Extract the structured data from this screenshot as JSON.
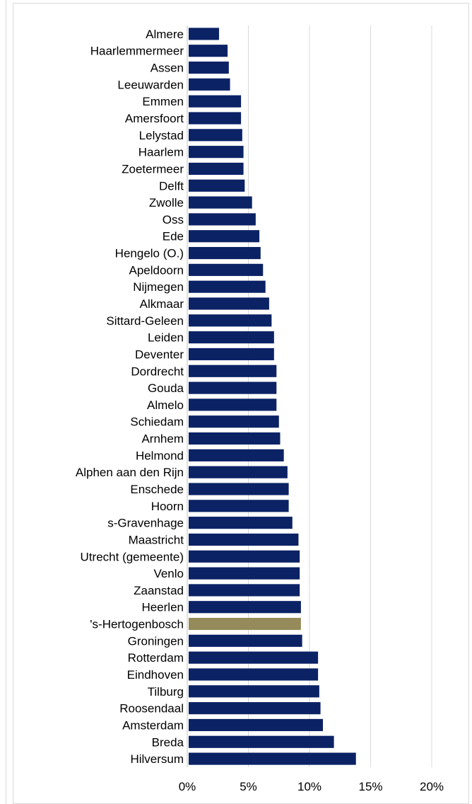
{
  "chart_data": {
    "type": "bar",
    "orientation": "horizontal",
    "categories": [
      "Almere",
      "Haarlemmermeer",
      "Assen",
      "Leeuwarden",
      "Emmen",
      "Amersfoort",
      "Lelystad",
      "Haarlem",
      "Zoetermeer",
      "Delft",
      "Zwolle",
      "Oss",
      "Ede",
      "Hengelo (O.)",
      "Apeldoorn",
      "Nijmegen",
      "Alkmaar",
      "Sittard-Geleen",
      "Leiden",
      "Deventer",
      "Dordrecht",
      "Gouda",
      "Almelo",
      "Schiedam",
      "Arnhem",
      "Helmond",
      "Alphen aan den Rijn",
      "Enschede",
      "Hoorn",
      "s-Gravenhage",
      "Maastricht",
      "Utrecht (gemeente)",
      "Venlo",
      "Zaanstad",
      "Heerlen",
      "'s-Hertogenbosch",
      "Groningen",
      "Rotterdam",
      "Eindhoven",
      "Tilburg",
      "Roosendaal",
      "Amsterdam",
      "Breda",
      "Hilversum"
    ],
    "values": [
      2.6,
      3.3,
      3.4,
      3.5,
      4.4,
      4.4,
      4.5,
      4.6,
      4.6,
      4.7,
      5.3,
      5.6,
      5.9,
      6.0,
      6.2,
      6.4,
      6.7,
      6.9,
      7.1,
      7.1,
      7.3,
      7.3,
      7.3,
      7.5,
      7.6,
      7.9,
      8.2,
      8.3,
      8.3,
      8.6,
      9.1,
      9.2,
      9.2,
      9.2,
      9.3,
      9.3,
      9.4,
      10.7,
      10.7,
      10.8,
      10.9,
      11.1,
      12.0,
      13.8
    ],
    "highlight_category": "'s-Hertogenbosch",
    "colors": {
      "bar": "#0b2265",
      "highlight": "#958b5a",
      "grid": "#d9d9d9"
    },
    "xlim": [
      0,
      20
    ],
    "xticks": [
      0,
      5,
      10,
      15,
      20
    ],
    "xtick_labels": [
      "0%",
      "5%",
      "10%",
      "15%",
      "20%"
    ],
    "grid": true,
    "title": "",
    "xlabel": "",
    "ylabel": ""
  }
}
